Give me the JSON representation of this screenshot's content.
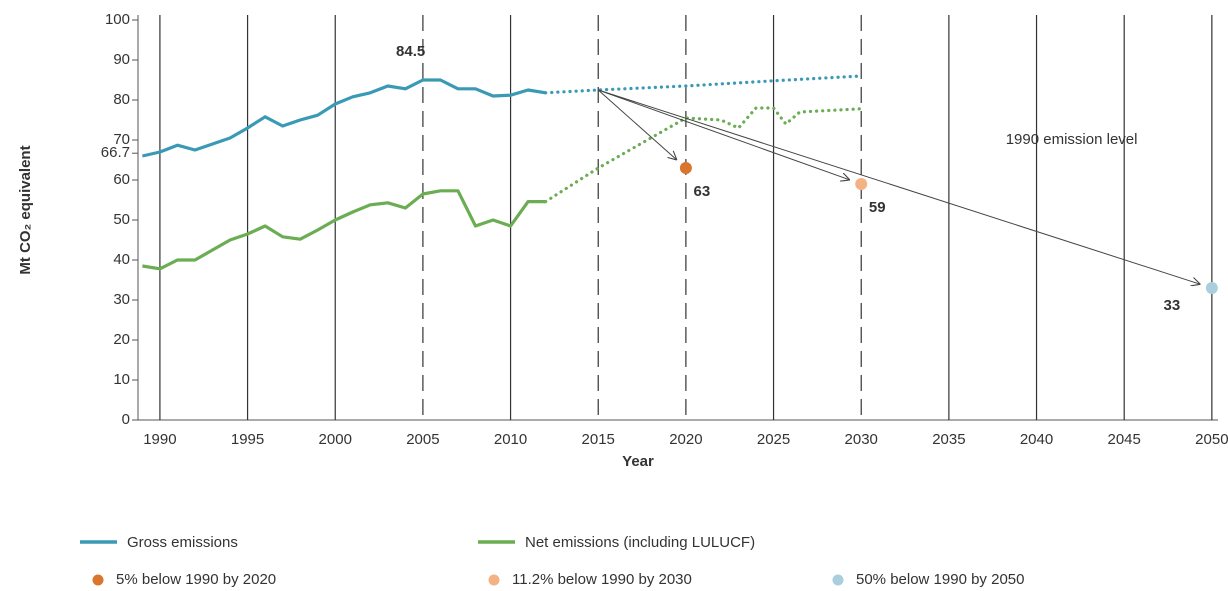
{
  "chart_data": {
    "type": "line",
    "x_label": "Year",
    "y_label": "Mt CO₂ equivalent",
    "x": [
      1989,
      1990,
      1991,
      1992,
      1993,
      1994,
      1995,
      1996,
      1997,
      1998,
      1999,
      2000,
      2001,
      2002,
      2003,
      2004,
      2005,
      2006,
      2007,
      2008,
      2009,
      2010,
      2011,
      2012
    ],
    "series": [
      {
        "name": "Gross emissions",
        "color": "#3a9ab5",
        "values": [
          66,
          67,
          68.7,
          67.5,
          69,
          70.5,
          73,
          75.8,
          73.5,
          75,
          76.2,
          79,
          80.8,
          81.8,
          83.5,
          82.8,
          85,
          85,
          82.8,
          82.8,
          81,
          81.2,
          82.5,
          81.8
        ],
        "proj_x": [
          2012,
          2015,
          2020,
          2025,
          2030
        ],
        "proj_values": [
          81.8,
          82.5,
          83.5,
          84.8,
          86
        ]
      },
      {
        "name": "Net emissions (including LULUCF)",
        "color": "#6aad52",
        "values": [
          38.5,
          37.8,
          40,
          40,
          42.5,
          45,
          46.5,
          48.5,
          45.8,
          45.2,
          47.5,
          50,
          52,
          53.8,
          54.3,
          53,
          56.5,
          57.3,
          57.3,
          48.5,
          50,
          48.5,
          54.6,
          54.6
        ],
        "proj_x": [
          2012,
          2015,
          2020,
          2022,
          2023,
          2024,
          2025,
          2025.7,
          2026.5,
          2030
        ],
        "proj_values": [
          54.6,
          63,
          75.5,
          75,
          73,
          78,
          78,
          74,
          77,
          77.8
        ]
      }
    ],
    "targets": [
      {
        "name": "5% below 1990 by 2020",
        "year": 2020,
        "value": 63,
        "color": "#d9752d"
      },
      {
        "name": "11.2% below 1990 by 2030",
        "year": 2030,
        "value": 59,
        "color": "#f4b183"
      },
      {
        "name": "50% below 1990 by 2050",
        "year": 2050,
        "value": 33,
        "color": "#a9cfdc"
      }
    ],
    "arrow_origin": [
      2015,
      82.5
    ],
    "annotations": [
      {
        "text": "84.5",
        "x": 2004.3,
        "y": 92,
        "bold": true
      },
      {
        "text": "1990 emission level",
        "x": 2042,
        "y": 70,
        "bold": false
      }
    ],
    "xlim": [
      1988.75,
      2050.35
    ],
    "ylim": [
      0,
      100
    ],
    "xticks": [
      1990,
      1995,
      2000,
      2005,
      2010,
      2015,
      2020,
      2025,
      2030,
      2035,
      2040,
      2045,
      2050
    ],
    "dashed_gridlines": [
      2005,
      2015,
      2020,
      2030
    ],
    "yticks": [
      0,
      10,
      20,
      30,
      40,
      50,
      60,
      66.7,
      70,
      80,
      90,
      100
    ]
  }
}
